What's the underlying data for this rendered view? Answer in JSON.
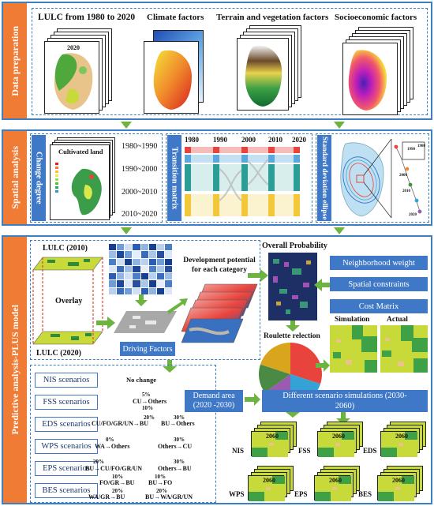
{
  "sections": {
    "data_preparation": "Data preparation",
    "spatial_analysis": "Spatial analysis",
    "predictive": "Predictive analysis-PLUS model"
  },
  "prep": {
    "lulc_title": "LULC from 1980 to 2020",
    "lulc_year": "2020",
    "climate_title": "Climate factors",
    "terrain_title": "Terrain and vegetation factors",
    "socio_title": "Socioeconomic factors"
  },
  "spatial": {
    "change_degree": "Change degree",
    "cultivated_land": "Cultivated land",
    "periods": [
      "1980~1990",
      "1990~2000",
      "2000~2010",
      "2010~2020"
    ],
    "transition_matrix": "Transition matrix",
    "years": [
      "1980",
      "1990",
      "2000",
      "2010",
      "2020"
    ],
    "sde": "Standard deviation ellipse",
    "inset_years": [
      "1990",
      "1980",
      "2000",
      "2010",
      "2020"
    ]
  },
  "predict": {
    "lulc_2010": "LULC (2010)",
    "overlay": "Overlay",
    "lulc_2020": "LULC (2020)",
    "driving_factors": "Driving Factors",
    "dev_potential": "Development potential for each category",
    "overall_probability": "Overall Probability",
    "roulette": "Roulette relection",
    "neighborhood": "Neighborhood weight",
    "spatial_constraints": "Spatial constraints",
    "cost_matrix": "Cost Matrix",
    "simulation": "Simulation",
    "actual": "Actual",
    "demand_area": "Demand area (2020 -2030)",
    "different_scenarios": "Different scenario simulations (2030-2060)"
  },
  "scenarios": [
    "NIS scenarios",
    "FSS scenarios",
    "EDS scenarios",
    "WPS scenarios",
    "EPS scenarios",
    "BES scenarios"
  ],
  "rules": {
    "no_change": "No change",
    "fss_pct": "5%",
    "fss_rule": "CU→Others",
    "fss_pct2": "10%",
    "eds_pct1": "20%",
    "eds_rule1": "CU/FO/GR/UN→BU",
    "eds_pct2": "30%",
    "eds_rule2": "BU→Others",
    "wps_pct1": "0%",
    "wps_rule1": "WA→Others",
    "wps_pct2": "30%",
    "wps_rule2": "Others→CU",
    "eps_pct1": "20%",
    "eps_rule1": "BU→CU/FO/GR/UN",
    "eps_pct2": "30%",
    "eps_rule2": "Others→BU",
    "bes_pct1": "10%",
    "bes_rule1": "FO/GR→BU",
    "bes_pct2": "10%",
    "bes_rule2": "BU→FO",
    "bes_pct3": "20%",
    "bes_rule3": "WA/GR→BU",
    "bes_pct4": "20%",
    "bes_rule4": "BU→WA/GR/UN"
  },
  "outputs": {
    "year": "2060",
    "labels": [
      "NIS",
      "FSS",
      "EDS",
      "WPS",
      "EPS",
      "BES"
    ]
  },
  "pie_chart": {
    "colors": [
      "#e8433c",
      "#35a2d6",
      "#9a5bb0",
      "#4a8a45",
      "#d9a51d",
      "#f08a3a"
    ],
    "values": [
      30,
      20,
      15,
      15,
      20
    ]
  }
}
